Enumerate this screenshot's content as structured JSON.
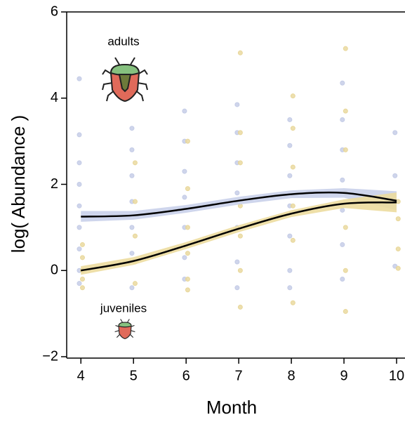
{
  "chart_data": {
    "type": "scatter",
    "xlabel": "Month",
    "ylabel": "log( Abundance )",
    "xlim": [
      3.73,
      10.16
    ],
    "ylim": [
      -2,
      6
    ],
    "xticks": [
      4,
      5,
      6,
      7,
      8,
      9,
      10
    ],
    "yticks": [
      {
        "value": -2,
        "label": "−2"
      },
      0,
      2,
      4,
      6
    ],
    "fit_color": "#000000",
    "series": [
      {
        "name": "adults",
        "color": "#c3cbe6",
        "x": [
          3.97,
          3.97,
          3.97,
          3.97,
          3.97,
          3.97,
          3.97,
          3.97,
          3.97,
          4.97,
          4.97,
          4.97,
          4.97,
          4.97,
          4.97,
          4.97,
          5.97,
          5.97,
          5.97,
          5.97,
          5.97,
          5.97,
          5.97,
          6.97,
          6.97,
          6.97,
          6.97,
          6.97,
          6.97,
          6.97,
          7.97,
          7.97,
          7.97,
          7.97,
          7.97,
          7.97,
          7.97,
          8.97,
          8.97,
          8.97,
          8.97,
          8.97,
          8.97,
          8.97,
          9.97,
          9.97,
          9.97,
          9.97
        ],
        "values": [
          4.45,
          3.15,
          2.5,
          2.0,
          1.5,
          1.0,
          0.5,
          0.0,
          -0.3,
          3.3,
          2.8,
          2.2,
          1.6,
          1.0,
          0.4,
          -0.4,
          3.7,
          3.0,
          2.3,
          1.7,
          1.0,
          0.3,
          -0.2,
          3.85,
          3.2,
          2.5,
          1.8,
          1.0,
          0.2,
          -0.4,
          3.5,
          2.9,
          2.2,
          1.5,
          0.8,
          0.0,
          -0.4,
          4.35,
          3.5,
          2.8,
          2.1,
          1.4,
          0.6,
          -0.2,
          3.2,
          2.2,
          1.6,
          0.1
        ],
        "fit": {
          "x": [
            4,
            5,
            6,
            7,
            8,
            9,
            10
          ],
          "values": [
            1.25,
            1.28,
            1.43,
            1.62,
            1.77,
            1.8,
            1.62
          ],
          "lower": [
            1.13,
            1.18,
            1.34,
            1.53,
            1.68,
            1.69,
            1.4
          ],
          "upper": [
            1.38,
            1.38,
            1.52,
            1.71,
            1.86,
            1.91,
            1.84
          ],
          "band_color": "#c9d0ea"
        }
      },
      {
        "name": "juveniles",
        "color": "#e8d79a",
        "x": [
          4.03,
          4.03,
          4.03,
          4.03,
          4.03,
          5.03,
          5.03,
          5.03,
          5.03,
          5.03,
          6.03,
          6.03,
          6.03,
          6.03,
          6.03,
          6.03,
          7.03,
          7.03,
          7.03,
          7.03,
          7.03,
          7.03,
          7.03,
          8.03,
          8.03,
          8.03,
          8.03,
          8.03,
          8.03,
          9.03,
          9.03,
          9.03,
          9.03,
          9.03,
          9.03,
          9.03,
          10.03,
          10.03,
          10.03,
          10.03
        ],
        "values": [
          0.6,
          0.3,
          0.0,
          -0.2,
          -0.4,
          2.5,
          1.6,
          0.8,
          0.2,
          -0.3,
          3.0,
          1.9,
          1.0,
          0.4,
          -0.2,
          -0.45,
          5.05,
          3.2,
          2.5,
          1.5,
          0.8,
          0.0,
          -0.85,
          4.05,
          3.3,
          2.4,
          1.5,
          0.7,
          -0.75,
          5.15,
          3.7,
          2.8,
          1.8,
          1.0,
          0.0,
          -0.95,
          1.6,
          1.2,
          0.5,
          0.05
        ],
        "fit": {
          "x": [
            4,
            5,
            6,
            7,
            8,
            9,
            10
          ],
          "values": [
            0.0,
            0.22,
            0.58,
            0.97,
            1.32,
            1.55,
            1.58
          ],
          "lower": [
            -0.1,
            0.13,
            0.5,
            0.89,
            1.24,
            1.45,
            1.35
          ],
          "upper": [
            0.1,
            0.31,
            0.66,
            1.05,
            1.4,
            1.65,
            1.81
          ],
          "band_color": "#ecdb9f"
        }
      }
    ]
  }
}
